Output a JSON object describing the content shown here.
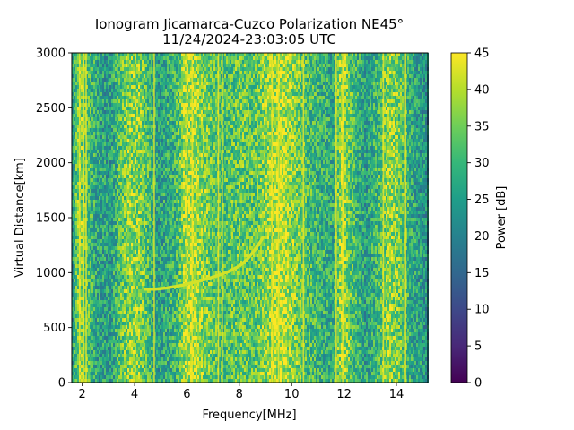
{
  "chart_data": {
    "type": "heatmap",
    "title": "Ionogram Jicamarca-Cuzco Polarization NE45°",
    "subtitle": "11/24/2024-23:03:05 UTC",
    "xlabel": "Frequency[MHz]",
    "ylabel": "Virtual Distance[km]",
    "xlim": [
      1.6,
      15.2
    ],
    "ylim": [
      0,
      3000
    ],
    "xticks": [
      2,
      4,
      6,
      8,
      10,
      12,
      14
    ],
    "yticks": [
      0,
      500,
      1000,
      1500,
      2000,
      2500,
      3000
    ],
    "colorbar": {
      "label": "Power [dB]",
      "range": [
        0,
        45
      ],
      "ticks": [
        0,
        5,
        10,
        15,
        20,
        25,
        30,
        35,
        40,
        45
      ],
      "colormap": "viridis"
    },
    "background_band_power_db": {
      "frequency_mhz": [
        1.6,
        1.9,
        2.1,
        2.6,
        3.1,
        3.5,
        3.8,
        4.2,
        4.5,
        4.9,
        5.6,
        5.9,
        6.2,
        6.6,
        7.0,
        7.4,
        8.0,
        8.6,
        9.1,
        9.6,
        10.1,
        10.6,
        11.1,
        11.6,
        11.9,
        12.3,
        12.8,
        13.3,
        13.7,
        14.1,
        14.6,
        15.2
      ],
      "power_db": [
        24,
        38,
        34,
        26,
        25,
        33,
        37,
        36,
        32,
        25,
        30,
        38,
        40,
        37,
        33,
        31,
        34,
        33,
        38,
        41,
        37,
        31,
        29,
        27,
        40,
        32,
        25,
        30,
        38,
        35,
        27,
        22
      ]
    },
    "vertical_interference_lines_mhz": [
      1.9,
      2.05,
      2.15,
      4.75,
      6.0,
      6.2,
      7.2,
      7.35,
      9.25,
      9.5,
      10.45,
      11.7,
      11.95,
      13.5,
      14.35
    ],
    "echo_trace": {
      "frequency_mhz": [
        4.4,
        4.8,
        5.2,
        5.6,
        6.0,
        6.4,
        6.8,
        7.2,
        7.6,
        8.0,
        8.3,
        8.6,
        8.8,
        8.9
      ],
      "virtual_distance_km": [
        850,
        850,
        860,
        875,
        895,
        920,
        945,
        975,
        1010,
        1060,
        1120,
        1210,
        1280,
        1320
      ],
      "power_db": 42
    },
    "grid": false
  }
}
